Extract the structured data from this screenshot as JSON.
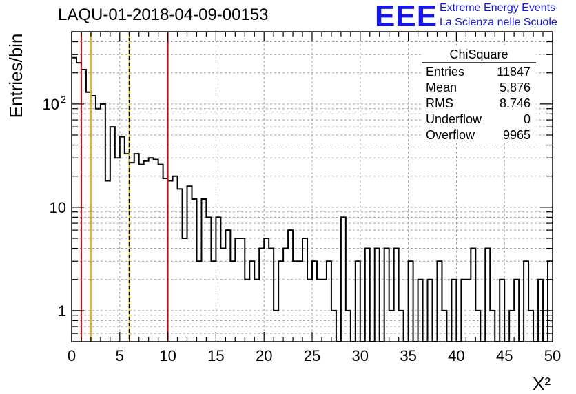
{
  "header": {
    "title": "LAQU-01-2018-04-09-00153",
    "logo_text": "EEE",
    "logo_line1": "Extreme Energy Events",
    "logo_line2": "La Scienza nelle Scuole"
  },
  "stats": {
    "name": "ChiSquare",
    "rows": [
      {
        "label": "Entries",
        "value": "11847"
      },
      {
        "label": "Mean",
        "value": "5.876"
      },
      {
        "label": "RMS",
        "value": "8.746"
      },
      {
        "label": "Underflow",
        "value": "0"
      },
      {
        "label": "Overflow",
        "value": "9965"
      }
    ]
  },
  "colors": {
    "red_line": "#e00000",
    "orange_line": "#f0b400",
    "blue": "#1515e6"
  },
  "chart_data": {
    "type": "histogram",
    "xlabel": "X²",
    "ylabel": "Entries/bin",
    "xlim": [
      0,
      50
    ],
    "ylim": [
      0.5,
      500
    ],
    "log_y": true,
    "grid": true,
    "x_ticks": [
      "0",
      "5",
      "10",
      "15",
      "20",
      "25",
      "30",
      "35",
      "40",
      "45",
      "50"
    ],
    "y_ticks": [
      {
        "value": 1,
        "label": "1"
      },
      {
        "value": 10,
        "label": "10"
      },
      {
        "value": 100,
        "label": "10",
        "sup": "2"
      }
    ],
    "bin_width": 0.5,
    "values": [
      280,
      250,
      215,
      130,
      120,
      90,
      100,
      18,
      60,
      30,
      48,
      33,
      27,
      33,
      26,
      28,
      30,
      29,
      26,
      19,
      18,
      20,
      15,
      5,
      16,
      12,
      3,
      12,
      8,
      3,
      8,
      4,
      6,
      3,
      5,
      5,
      2,
      3,
      2,
      4,
      5,
      4,
      1,
      3,
      4,
      6,
      3,
      3,
      5,
      2,
      3,
      2,
      2,
      3,
      1,
      0,
      8,
      1,
      0,
      3,
      0,
      4,
      0,
      4,
      0,
      4,
      1,
      4,
      1,
      0,
      3,
      0,
      2,
      0,
      2,
      0,
      3,
      1,
      0,
      2,
      0,
      2,
      2,
      4,
      1,
      0,
      4,
      1,
      0,
      2,
      0,
      1,
      2,
      0,
      3,
      1,
      0,
      2,
      0,
      3
    ],
    "vertical_lines": [
      {
        "x": 1,
        "color": "#e00000",
        "style": "solid"
      },
      {
        "x": 2,
        "color": "#f0b400",
        "style": "solid"
      },
      {
        "x": 6,
        "color": "#f0b400",
        "style": "solid"
      },
      {
        "x": 6,
        "color": "#000000",
        "style": "dashed"
      },
      {
        "x": 10,
        "color": "#e00000",
        "style": "solid"
      }
    ]
  }
}
